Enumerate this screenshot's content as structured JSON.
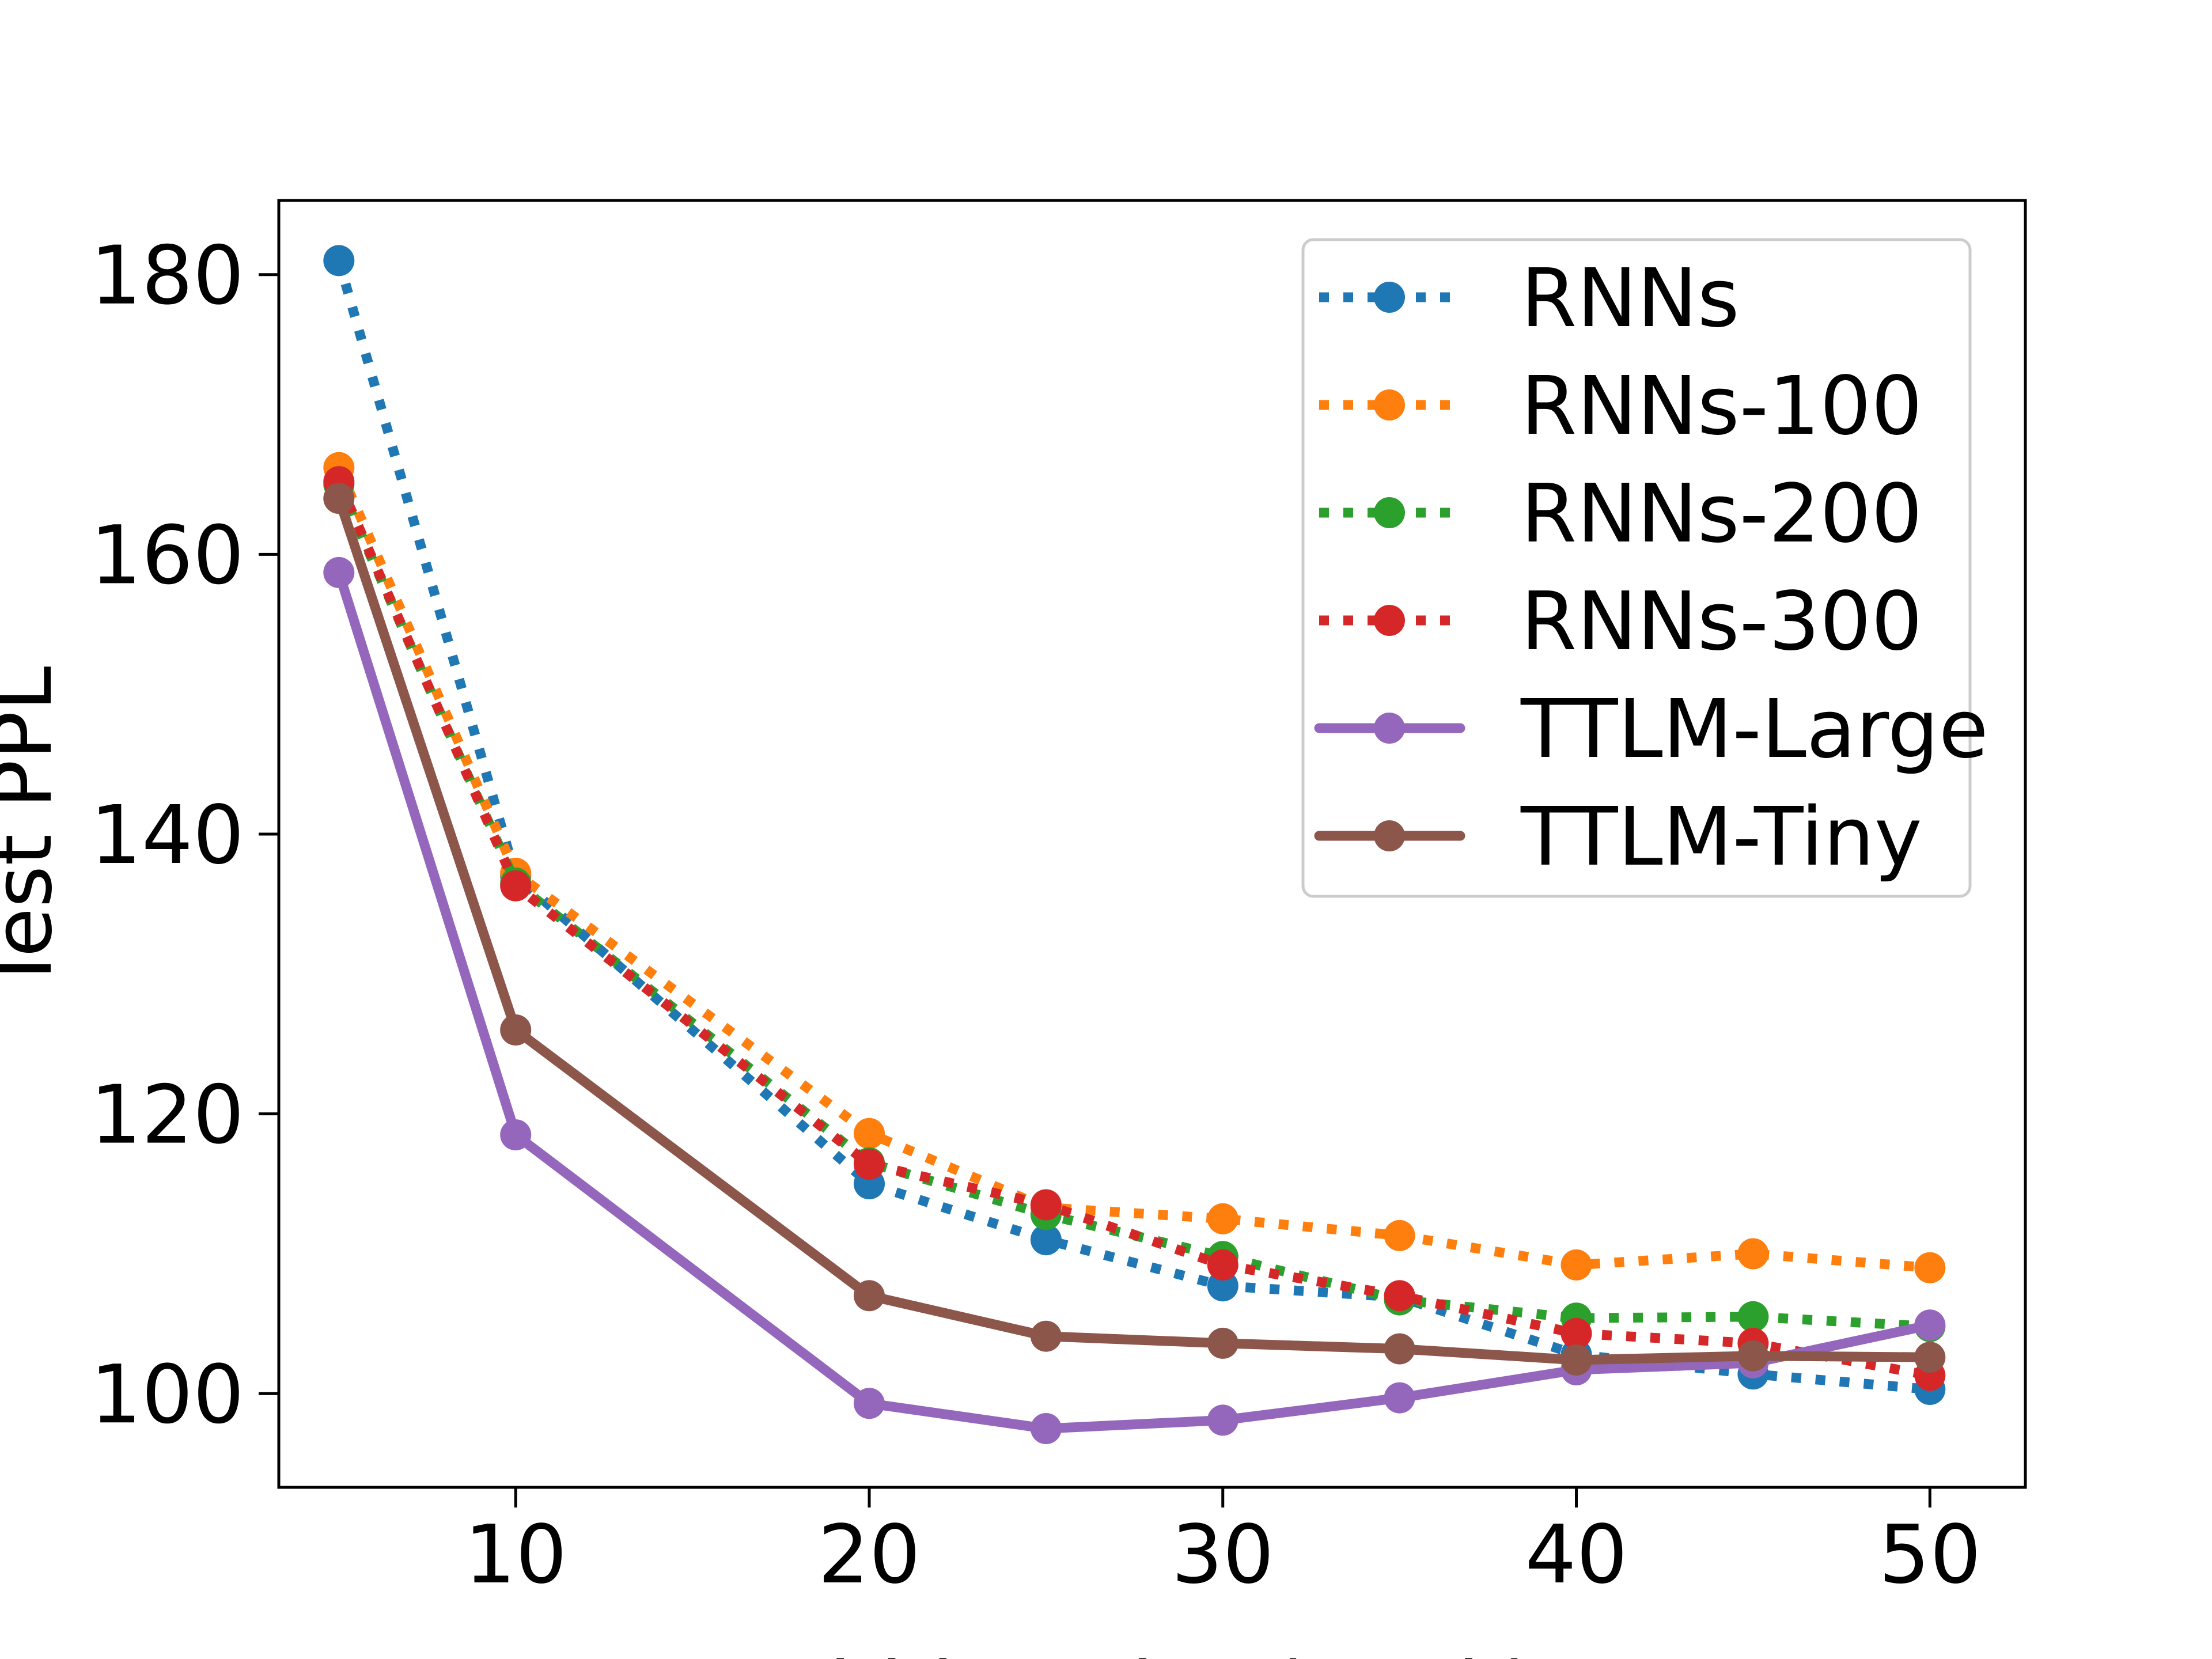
{
  "chart_data": {
    "type": "line",
    "title": "",
    "xlabel": "Hidden Size (Rank)",
    "ylabel": "Test PPL",
    "x": [
      5,
      10,
      20,
      25,
      30,
      35,
      40,
      45,
      50
    ],
    "xlim": [
      3.3,
      52.7
    ],
    "ylim": [
      93.3,
      185.3
    ],
    "xticks": [
      10,
      20,
      30,
      40,
      50
    ],
    "yticks": [
      100,
      120,
      140,
      160,
      180
    ],
    "grid": false,
    "legend_position": "top-right",
    "series": [
      {
        "name": "RNNs",
        "color": "#1f77b4",
        "line_style": "dotted",
        "values": [
          181.0,
          137.0,
          115.0,
          111.0,
          107.7,
          106.9,
          102.8,
          101.4,
          100.3
        ]
      },
      {
        "name": "RNNs-100",
        "color": "#ff7f0e",
        "line_style": "dotted",
        "values": [
          166.2,
          137.2,
          118.6,
          113.3,
          112.5,
          111.3,
          109.2,
          110.0,
          109.0
        ]
      },
      {
        "name": "RNNs-200",
        "color": "#2ca02c",
        "line_style": "dotted",
        "values": [
          165.0,
          136.5,
          116.5,
          112.8,
          109.8,
          106.7,
          105.4,
          105.5,
          104.8
        ]
      },
      {
        "name": "RNNs-300",
        "color": "#d62728",
        "line_style": "dotted",
        "values": [
          165.2,
          136.3,
          116.4,
          113.5,
          109.2,
          107.0,
          104.3,
          103.6,
          101.3
        ]
      },
      {
        "name": "TTLM-Large",
        "color": "#9467bd",
        "line_style": "solid",
        "values": [
          158.7,
          118.5,
          99.3,
          97.5,
          98.1,
          99.7,
          101.7,
          102.2,
          104.9
        ]
      },
      {
        "name": "TTLM-Tiny",
        "color": "#8c564b",
        "line_style": "solid",
        "values": [
          164.0,
          126.0,
          107.0,
          104.1,
          103.6,
          103.2,
          102.4,
          102.7,
          102.6
        ]
      }
    ]
  }
}
